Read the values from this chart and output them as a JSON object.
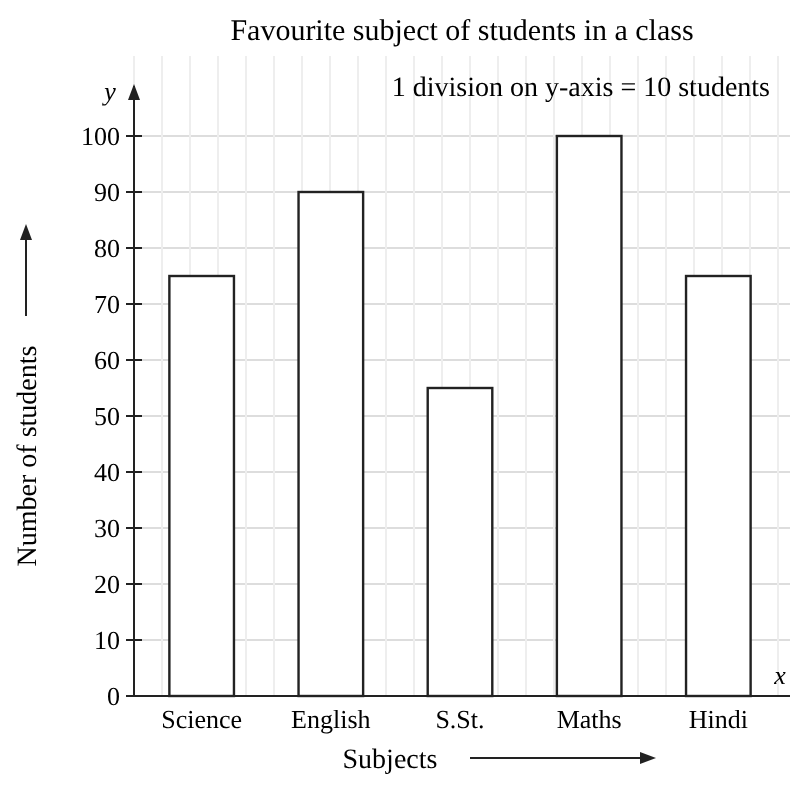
{
  "chart_data": {
    "type": "bar",
    "title": "Favourite subject of students in a class",
    "xlabel": "Subjects",
    "ylabel": "Number of students",
    "annotations": [
      "1 division on y-axis = 10 students",
      "y",
      "x"
    ],
    "categories": [
      "Science",
      "English",
      "S.St.",
      "Maths",
      "Hindi"
    ],
    "values": [
      75,
      90,
      55,
      100,
      75
    ],
    "color": "#ffffff",
    "ylim": [
      0,
      100
    ],
    "yticks": [
      0,
      10,
      20,
      30,
      40,
      50,
      60,
      70,
      80,
      90,
      100
    ],
    "grid": true
  }
}
